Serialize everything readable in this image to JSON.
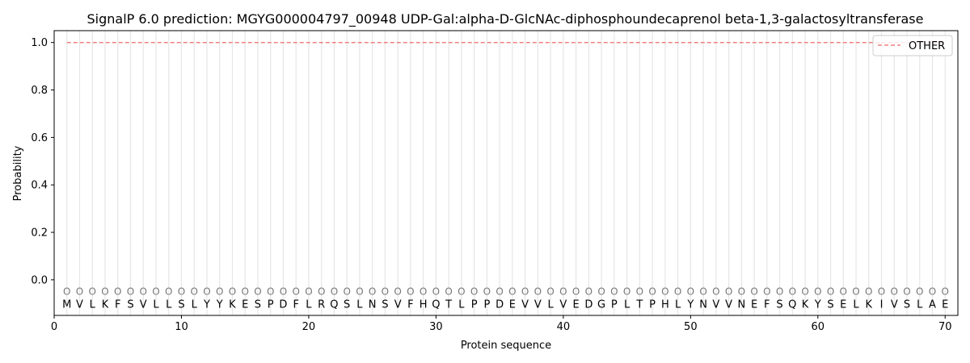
{
  "chart_data": {
    "type": "line",
    "title": "SignalP 6.0 prediction: MGYG000004797_00948 UDP-Gal:alpha-D-GlcNAc-diphosphoundecaprenol beta-1,3-galactosyltransferase",
    "xlabel": "Protein sequence",
    "ylabel": "Probability",
    "xlim": [
      0,
      71
    ],
    "ylim": [
      -0.15,
      1.05
    ],
    "xticks": [
      0,
      10,
      20,
      30,
      40,
      50,
      60,
      70
    ],
    "yticks": [
      0.0,
      0.2,
      0.4,
      0.6,
      0.8,
      1.0
    ],
    "ytick_labels": [
      "0.0",
      "0.2",
      "0.4",
      "0.6",
      "0.8",
      "1.0"
    ],
    "sequence": [
      "M",
      "V",
      "L",
      "K",
      "F",
      "S",
      "V",
      "L",
      "L",
      "S",
      "L",
      "Y",
      "Y",
      "K",
      "E",
      "S",
      "P",
      "D",
      "F",
      "L",
      "R",
      "Q",
      "S",
      "L",
      "N",
      "S",
      "V",
      "F",
      "H",
      "Q",
      "T",
      "L",
      "P",
      "P",
      "D",
      "E",
      "V",
      "V",
      "L",
      "V",
      "E",
      "D",
      "G",
      "P",
      "L",
      "T",
      "P",
      "H",
      "L",
      "Y",
      "N",
      "V",
      "V",
      "N",
      "E",
      "F",
      "S",
      "Q",
      "K",
      "Y",
      "S",
      "E",
      "L",
      "K",
      "I",
      "V",
      "S",
      "L",
      "A",
      "E"
    ],
    "predicted_labels": "OOOOOOOOOOOOOOOOOOOOOOOOOOOOOOOOOOOOOOOOOOOOOOOOOOOOOOOOOOOOOOOOOOOOOO",
    "series": [
      {
        "name": "OTHER",
        "color": "#f08080",
        "style": "dashed",
        "x_range": [
          1,
          70
        ],
        "value": 1.0
      }
    ],
    "legend": "top-right",
    "grid": "vertical lines at each residue"
  }
}
